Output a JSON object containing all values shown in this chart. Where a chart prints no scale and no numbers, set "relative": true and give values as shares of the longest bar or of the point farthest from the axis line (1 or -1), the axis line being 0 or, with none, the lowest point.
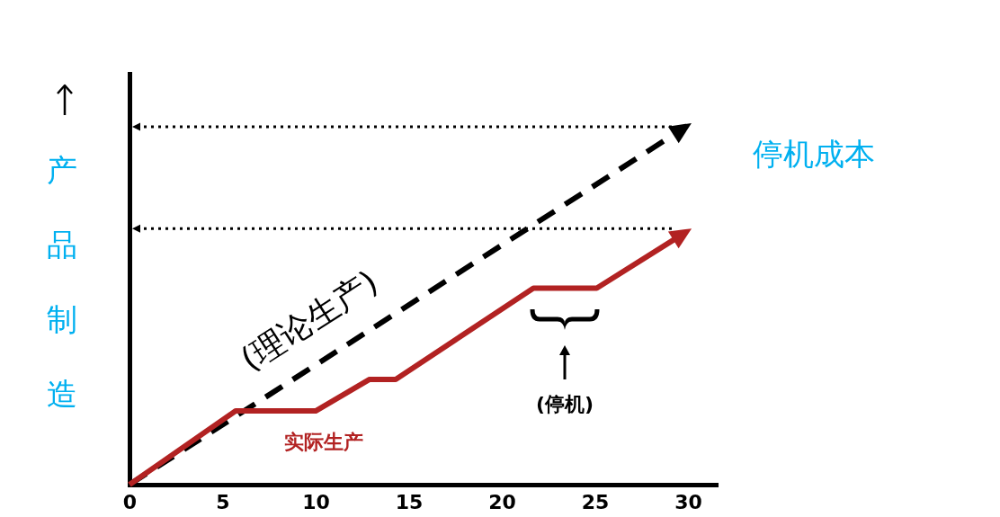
{
  "chart_data": {
    "type": "line",
    "ylabel": "产品制造",
    "relative": true,
    "xlim": [
      0,
      31.5
    ],
    "xticks": [
      0,
      5,
      10,
      15,
      20,
      25,
      30
    ],
    "marker": "none",
    "grid": false,
    "legend": false,
    "series": [
      {
        "name": "(理论生产)",
        "color": "#000000",
        "line_style": "dashed",
        "x": [
          0,
          29.3
        ],
        "values": [
          0,
          1
        ]
      },
      {
        "name": "实际生产",
        "color": "#b22222",
        "line_style": "solid",
        "x": [
          0,
          5.7,
          10,
          12.9,
          14.3,
          21.7,
          25.1,
          29.3
        ],
        "values": [
          0,
          0.21,
          0.21,
          0.3,
          0.3,
          0.56,
          0.56,
          0.7
        ]
      }
    ],
    "ref_lines": [
      {
        "axis": "y",
        "value": 1.02,
        "line_style": "dotted",
        "color": "#000000"
      },
      {
        "axis": "y",
        "value": 0.73,
        "line_style": "dotted",
        "color": "#000000"
      }
    ],
    "annotations": [
      "停机成本",
      "(停机)"
    ]
  }
}
